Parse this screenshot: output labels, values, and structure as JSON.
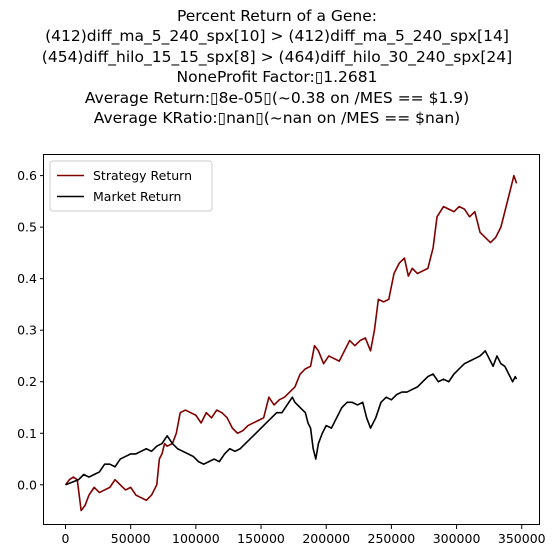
{
  "title_lines": [
    "Percent Return of a Gene:",
    "(412)diff_ma_5_240_spx[10] > (412)diff_ma_5_240_spx[14]",
    "(454)diff_hilo_15_15_spx[8] > (464)diff_hilo_30_240_spx[24]",
    "NoneProfit Factor:▯1.2681",
    "Average Return:▯8e-05▯(~0.38 on /MES == $1.9)",
    "Average KRatio:▯nan▯(~nan on /MES == $nan)"
  ],
  "chart_data": {
    "type": "line",
    "xlim": [
      -16500,
      364000
    ],
    "ylim": [
      -0.078,
      0.64
    ],
    "xticks": [
      0,
      50000,
      100000,
      150000,
      200000,
      250000,
      300000,
      350000
    ],
    "xtick_labels": [
      "0",
      "50000",
      "100000",
      "150000",
      "200000",
      "250000",
      "300000",
      "350000"
    ],
    "yticks": [
      0.0,
      0.1,
      0.2,
      0.3,
      0.4,
      0.5,
      0.6
    ],
    "ytick_labels": [
      "0.0",
      "0.1",
      "0.2",
      "0.3",
      "0.4",
      "0.5",
      "0.6"
    ],
    "grid": false,
    "legend_position": "upper-left",
    "series": [
      {
        "name": "Strategy Return",
        "color": "#800000",
        "points": [
          [
            0,
            0.0
          ],
          [
            3000,
            0.01
          ],
          [
            6000,
            0.015
          ],
          [
            9000,
            0.01
          ],
          [
            12000,
            -0.05
          ],
          [
            15000,
            -0.04
          ],
          [
            18000,
            -0.02
          ],
          [
            22000,
            -0.005
          ],
          [
            26000,
            -0.015
          ],
          [
            30000,
            -0.01
          ],
          [
            34000,
            -0.005
          ],
          [
            38000,
            0.01
          ],
          [
            42000,
            0.0
          ],
          [
            46000,
            -0.01
          ],
          [
            50000,
            -0.005
          ],
          [
            54000,
            -0.02
          ],
          [
            58000,
            -0.025
          ],
          [
            62000,
            -0.03
          ],
          [
            66000,
            -0.02
          ],
          [
            70000,
            0.0
          ],
          [
            72000,
            0.05
          ],
          [
            74000,
            0.06
          ],
          [
            76000,
            0.08
          ],
          [
            78000,
            0.075
          ],
          [
            82000,
            0.08
          ],
          [
            85000,
            0.1
          ],
          [
            88000,
            0.14
          ],
          [
            92000,
            0.145
          ],
          [
            96000,
            0.14
          ],
          [
            100000,
            0.135
          ],
          [
            104000,
            0.12
          ],
          [
            108000,
            0.14
          ],
          [
            112000,
            0.13
          ],
          [
            116000,
            0.145
          ],
          [
            120000,
            0.14
          ],
          [
            124000,
            0.13
          ],
          [
            128000,
            0.11
          ],
          [
            132000,
            0.1
          ],
          [
            136000,
            0.105
          ],
          [
            140000,
            0.115
          ],
          [
            144000,
            0.12
          ],
          [
            148000,
            0.125
          ],
          [
            152000,
            0.13
          ],
          [
            156000,
            0.17
          ],
          [
            160000,
            0.155
          ],
          [
            164000,
            0.165
          ],
          [
            168000,
            0.17
          ],
          [
            172000,
            0.18
          ],
          [
            176000,
            0.19
          ],
          [
            180000,
            0.215
          ],
          [
            184000,
            0.225
          ],
          [
            188000,
            0.23
          ],
          [
            191000,
            0.27
          ],
          [
            194000,
            0.26
          ],
          [
            198000,
            0.235
          ],
          [
            202000,
            0.25
          ],
          [
            206000,
            0.245
          ],
          [
            210000,
            0.24
          ],
          [
            214000,
            0.26
          ],
          [
            218000,
            0.28
          ],
          [
            222000,
            0.27
          ],
          [
            226000,
            0.28
          ],
          [
            230000,
            0.285
          ],
          [
            234000,
            0.26
          ],
          [
            237000,
            0.3
          ],
          [
            240000,
            0.36
          ],
          [
            244000,
            0.355
          ],
          [
            248000,
            0.36
          ],
          [
            252000,
            0.41
          ],
          [
            256000,
            0.43
          ],
          [
            260000,
            0.44
          ],
          [
            263000,
            0.405
          ],
          [
            266000,
            0.42
          ],
          [
            270000,
            0.41
          ],
          [
            274000,
            0.415
          ],
          [
            278000,
            0.42
          ],
          [
            282000,
            0.46
          ],
          [
            285000,
            0.52
          ],
          [
            290000,
            0.54
          ],
          [
            294000,
            0.535
          ],
          [
            298000,
            0.53
          ],
          [
            302000,
            0.54
          ],
          [
            306000,
            0.535
          ],
          [
            310000,
            0.52
          ],
          [
            314000,
            0.53
          ],
          [
            318000,
            0.49
          ],
          [
            322000,
            0.48
          ],
          [
            326000,
            0.47
          ],
          [
            330000,
            0.48
          ],
          [
            334000,
            0.5
          ],
          [
            338000,
            0.54
          ],
          [
            342000,
            0.58
          ],
          [
            344000,
            0.6
          ],
          [
            346000,
            0.585
          ]
        ]
      },
      {
        "name": "Market Return",
        "color": "#000000",
        "points": [
          [
            0,
            0.0
          ],
          [
            5000,
            0.005
          ],
          [
            10000,
            0.01
          ],
          [
            14000,
            0.02
          ],
          [
            18000,
            0.015
          ],
          [
            22000,
            0.02
          ],
          [
            26000,
            0.025
          ],
          [
            30000,
            0.04
          ],
          [
            34000,
            0.04
          ],
          [
            38000,
            0.035
          ],
          [
            42000,
            0.05
          ],
          [
            46000,
            0.055
          ],
          [
            50000,
            0.06
          ],
          [
            54000,
            0.06
          ],
          [
            58000,
            0.065
          ],
          [
            62000,
            0.07
          ],
          [
            66000,
            0.065
          ],
          [
            70000,
            0.075
          ],
          [
            74000,
            0.08
          ],
          [
            78000,
            0.095
          ],
          [
            82000,
            0.08
          ],
          [
            86000,
            0.07
          ],
          [
            90000,
            0.065
          ],
          [
            94000,
            0.06
          ],
          [
            98000,
            0.055
          ],
          [
            102000,
            0.045
          ],
          [
            106000,
            0.04
          ],
          [
            110000,
            0.045
          ],
          [
            114000,
            0.05
          ],
          [
            118000,
            0.045
          ],
          [
            122000,
            0.06
          ],
          [
            126000,
            0.07
          ],
          [
            130000,
            0.065
          ],
          [
            134000,
            0.07
          ],
          [
            138000,
            0.08
          ],
          [
            142000,
            0.09
          ],
          [
            146000,
            0.1
          ],
          [
            150000,
            0.11
          ],
          [
            154000,
            0.12
          ],
          [
            158000,
            0.13
          ],
          [
            162000,
            0.14
          ],
          [
            166000,
            0.14
          ],
          [
            170000,
            0.155
          ],
          [
            174000,
            0.17
          ],
          [
            176000,
            0.16
          ],
          [
            180000,
            0.15
          ],
          [
            184000,
            0.14
          ],
          [
            186000,
            0.12
          ],
          [
            188000,
            0.11
          ],
          [
            190000,
            0.07
          ],
          [
            192000,
            0.05
          ],
          [
            194000,
            0.08
          ],
          [
            197000,
            0.1
          ],
          [
            200000,
            0.115
          ],
          [
            204000,
            0.11
          ],
          [
            208000,
            0.13
          ],
          [
            212000,
            0.15
          ],
          [
            216000,
            0.16
          ],
          [
            220000,
            0.16
          ],
          [
            224000,
            0.155
          ],
          [
            228000,
            0.16
          ],
          [
            231000,
            0.13
          ],
          [
            234000,
            0.11
          ],
          [
            238000,
            0.13
          ],
          [
            242000,
            0.16
          ],
          [
            246000,
            0.17
          ],
          [
            250000,
            0.165
          ],
          [
            254000,
            0.175
          ],
          [
            258000,
            0.18
          ],
          [
            262000,
            0.18
          ],
          [
            266000,
            0.185
          ],
          [
            270000,
            0.19
          ],
          [
            274000,
            0.2
          ],
          [
            278000,
            0.21
          ],
          [
            282000,
            0.215
          ],
          [
            286000,
            0.2
          ],
          [
            290000,
            0.205
          ],
          [
            294000,
            0.2
          ],
          [
            298000,
            0.215
          ],
          [
            302000,
            0.225
          ],
          [
            306000,
            0.235
          ],
          [
            310000,
            0.24
          ],
          [
            314000,
            0.245
          ],
          [
            318000,
            0.25
          ],
          [
            320000,
            0.255
          ],
          [
            322000,
            0.26
          ],
          [
            325000,
            0.245
          ],
          [
            328000,
            0.23
          ],
          [
            331000,
            0.25
          ],
          [
            334000,
            0.235
          ],
          [
            337000,
            0.23
          ],
          [
            340000,
            0.215
          ],
          [
            343000,
            0.2
          ],
          [
            345000,
            0.21
          ],
          [
            346000,
            0.205
          ]
        ]
      }
    ]
  }
}
